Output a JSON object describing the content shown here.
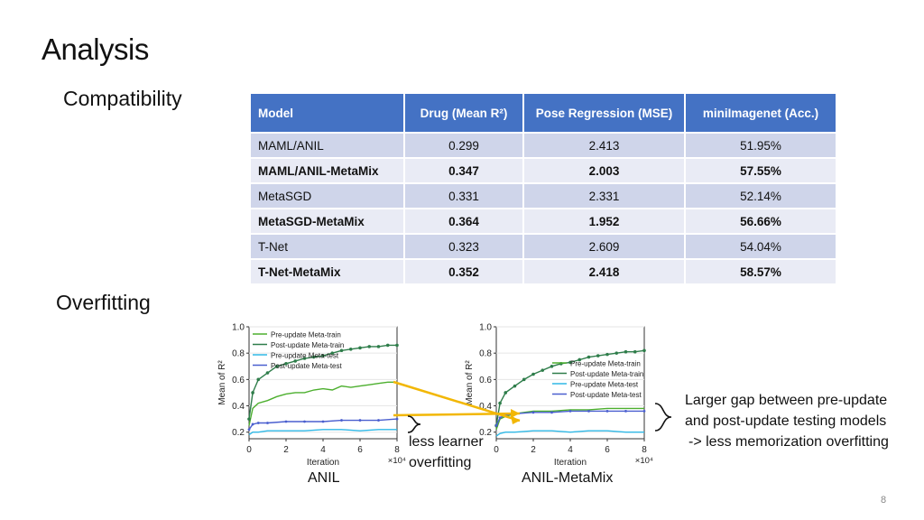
{
  "slide": {
    "title": "Analysis",
    "section_compat": "Compatibility",
    "section_overfit": "Overfitting",
    "page_number": "8"
  },
  "table": {
    "headers": [
      "Model",
      "Drug (Mean R²)",
      "Pose Regression (MSE)",
      "miniImagenet (Acc.)"
    ],
    "rows": [
      {
        "model": "MAML/ANIL",
        "drug": "0.299",
        "pose": "2.413",
        "mini": "51.95%",
        "bold": false
      },
      {
        "model": "MAML/ANIL-MetaMix",
        "drug": "0.347",
        "pose": "2.003",
        "mini": "57.55%",
        "bold": true
      },
      {
        "model": "MetaSGD",
        "drug": "0.331",
        "pose": "2.331",
        "mini": "52.14%",
        "bold": false
      },
      {
        "model": "MetaSGD-MetaMix",
        "drug": "0.364",
        "pose": "1.952",
        "mini": "56.66%",
        "bold": true
      },
      {
        "model": "T-Net",
        "drug": "0.323",
        "pose": "2.609",
        "mini": "54.04%",
        "bold": false
      },
      {
        "model": "T-Net-MetaMix",
        "drug": "0.352",
        "pose": "2.418",
        "mini": "58.57%",
        "bold": true
      }
    ]
  },
  "annotations": {
    "less1": "less learner",
    "less2": "overfitting",
    "gap1": "Larger gap between pre-update",
    "gap2": "and post-update testing models",
    "gap3": "-> less memorization overfitting"
  },
  "colors": {
    "header_bg": "#4472c4",
    "pre_train": "#4caf2e",
    "post_train": "#2e7d4a",
    "pre_test": "#2fb8e6",
    "post_test": "#4a5fcf",
    "arrow": "#f2b705"
  },
  "chart_data": [
    {
      "type": "line",
      "title": "ANIL",
      "xlabel": "Iteration",
      "x_multiplier_label": "×10⁴",
      "ylabel": "Mean of R²",
      "xlim": [
        0,
        8
      ],
      "ylim": [
        0.15,
        1.0
      ],
      "xticks": [
        "0",
        "2",
        "4",
        "6",
        "8"
      ],
      "yticks": [
        "0.2",
        "0.4",
        "0.6",
        "0.8",
        "1.0"
      ],
      "legend_position": "top-left",
      "series": [
        {
          "name": "Pre-update Meta-train",
          "x": [
            0,
            0.2,
            0.5,
            1,
            1.5,
            2,
            2.5,
            3,
            3.5,
            4,
            4.5,
            5,
            5.5,
            6,
            6.5,
            7,
            7.5,
            8
          ],
          "values": [
            0.25,
            0.38,
            0.42,
            0.44,
            0.47,
            0.49,
            0.5,
            0.5,
            0.52,
            0.53,
            0.52,
            0.55,
            0.54,
            0.55,
            0.56,
            0.57,
            0.58,
            0.58
          ]
        },
        {
          "name": "Post-update Meta-train",
          "x": [
            0,
            0.2,
            0.5,
            1,
            1.5,
            2,
            2.5,
            3,
            3.5,
            4,
            4.5,
            5,
            5.5,
            6,
            6.5,
            7,
            7.5,
            8
          ],
          "values": [
            0.3,
            0.5,
            0.6,
            0.65,
            0.7,
            0.72,
            0.74,
            0.76,
            0.77,
            0.78,
            0.8,
            0.82,
            0.83,
            0.84,
            0.85,
            0.85,
            0.86,
            0.86
          ]
        },
        {
          "name": "Pre-update Meta-test",
          "x": [
            0,
            0.2,
            0.5,
            1,
            2,
            3,
            4,
            5,
            6,
            7,
            8
          ],
          "values": [
            0.18,
            0.2,
            0.2,
            0.21,
            0.21,
            0.21,
            0.22,
            0.22,
            0.21,
            0.22,
            0.22
          ]
        },
        {
          "name": "Post-update Meta-test",
          "x": [
            0,
            0.2,
            0.5,
            1,
            2,
            3,
            4,
            5,
            6,
            7,
            8
          ],
          "values": [
            0.22,
            0.26,
            0.27,
            0.27,
            0.28,
            0.28,
            0.28,
            0.29,
            0.29,
            0.29,
            0.3
          ]
        }
      ]
    },
    {
      "type": "line",
      "title": "ANIL-MetaMix",
      "xlabel": "Iteration",
      "x_multiplier_label": "×10⁴",
      "ylabel": "Mean of R²",
      "xlim": [
        0,
        8
      ],
      "ylim": [
        0.15,
        1.0
      ],
      "xticks": [
        "0",
        "2",
        "4",
        "6",
        "8"
      ],
      "yticks": [
        "0.2",
        "0.4",
        "0.6",
        "0.8",
        "1.0"
      ],
      "legend_position": "center-right",
      "series": [
        {
          "name": "Pre-update Meta-train",
          "x": [
            0,
            0.2,
            0.5,
            1,
            1.5,
            2,
            3,
            4,
            5,
            6,
            7,
            8
          ],
          "values": [
            0.22,
            0.3,
            0.32,
            0.34,
            0.35,
            0.36,
            0.36,
            0.37,
            0.37,
            0.38,
            0.38,
            0.38
          ]
        },
        {
          "name": "Post-update Meta-train",
          "x": [
            0,
            0.2,
            0.5,
            1,
            1.5,
            2,
            2.5,
            3,
            3.5,
            4,
            4.5,
            5,
            5.5,
            6,
            6.5,
            7,
            7.5,
            8
          ],
          "values": [
            0.25,
            0.42,
            0.5,
            0.55,
            0.6,
            0.64,
            0.67,
            0.7,
            0.72,
            0.73,
            0.75,
            0.77,
            0.78,
            0.79,
            0.8,
            0.81,
            0.81,
            0.82
          ]
        },
        {
          "name": "Pre-update Meta-test",
          "x": [
            0,
            0.2,
            0.5,
            1,
            2,
            3,
            4,
            5,
            6,
            7,
            8
          ],
          "values": [
            0.17,
            0.19,
            0.2,
            0.2,
            0.21,
            0.21,
            0.2,
            0.21,
            0.21,
            0.2,
            0.2
          ]
        },
        {
          "name": "Post-update Meta-test",
          "x": [
            0,
            0.2,
            0.5,
            1,
            2,
            3,
            4,
            5,
            6,
            7,
            8
          ],
          "values": [
            0.25,
            0.31,
            0.33,
            0.34,
            0.35,
            0.35,
            0.36,
            0.36,
            0.36,
            0.36,
            0.36
          ]
        }
      ]
    }
  ]
}
